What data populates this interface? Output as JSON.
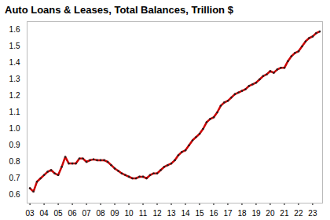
{
  "chart_data": {
    "type": "line",
    "title": "Auto Loans & Leases, Total Balances, Trillion $",
    "x": [
      2003,
      2003.25,
      2003.5,
      2003.75,
      2004,
      2004.25,
      2004.5,
      2004.75,
      2005,
      2005.25,
      2005.5,
      2005.75,
      2006,
      2006.25,
      2006.5,
      2006.75,
      2007,
      2007.25,
      2007.5,
      2007.75,
      2008,
      2008.25,
      2008.5,
      2008.75,
      2009,
      2009.25,
      2009.5,
      2009.75,
      2010,
      2010.25,
      2010.5,
      2010.75,
      2011,
      2011.25,
      2011.5,
      2011.75,
      2012,
      2012.25,
      2012.5,
      2012.75,
      2013,
      2013.25,
      2013.5,
      2013.75,
      2014,
      2014.25,
      2014.5,
      2014.75,
      2015,
      2015.25,
      2015.5,
      2015.75,
      2016,
      2016.25,
      2016.5,
      2016.75,
      2017,
      2017.25,
      2017.5,
      2017.75,
      2018,
      2018.25,
      2018.5,
      2018.75,
      2019,
      2019.25,
      2019.5,
      2019.75,
      2020,
      2020.25,
      2020.5,
      2020.75,
      2021,
      2021.25,
      2021.5,
      2021.75,
      2022,
      2022.25,
      2022.5,
      2022.75,
      2023,
      2023.25,
      2023.5
    ],
    "series": [
      {
        "name": "Auto Loans & Leases",
        "color": "#cc0000",
        "marker": "circle",
        "values": [
          0.64,
          0.62,
          0.68,
          0.7,
          0.72,
          0.74,
          0.75,
          0.73,
          0.72,
          0.77,
          0.83,
          0.79,
          0.79,
          0.79,
          0.82,
          0.82,
          0.8,
          0.81,
          0.815,
          0.81,
          0.81,
          0.81,
          0.8,
          0.78,
          0.76,
          0.745,
          0.73,
          0.72,
          0.71,
          0.7,
          0.7,
          0.71,
          0.71,
          0.7,
          0.72,
          0.73,
          0.73,
          0.75,
          0.77,
          0.78,
          0.79,
          0.81,
          0.84,
          0.86,
          0.87,
          0.9,
          0.93,
          0.95,
          0.97,
          1.0,
          1.04,
          1.06,
          1.07,
          1.1,
          1.14,
          1.16,
          1.17,
          1.19,
          1.21,
          1.22,
          1.23,
          1.24,
          1.26,
          1.27,
          1.28,
          1.3,
          1.32,
          1.33,
          1.35,
          1.34,
          1.36,
          1.37,
          1.37,
          1.41,
          1.44,
          1.46,
          1.47,
          1.5,
          1.53,
          1.55,
          1.56,
          1.58,
          1.59
        ]
      }
    ],
    "xlim": [
      2002.8,
      2023.7
    ],
    "xticks": [
      {
        "value": 2003,
        "label": "03"
      },
      {
        "value": 2004,
        "label": "04"
      },
      {
        "value": 2005,
        "label": "05"
      },
      {
        "value": 2006,
        "label": "06"
      },
      {
        "value": 2007,
        "label": "07"
      },
      {
        "value": 2008,
        "label": "08"
      },
      {
        "value": 2009,
        "label": "09"
      },
      {
        "value": 2010,
        "label": "10"
      },
      {
        "value": 2011,
        "label": "11"
      },
      {
        "value": 2012,
        "label": "12"
      },
      {
        "value": 2013,
        "label": "13"
      },
      {
        "value": 2014,
        "label": "14"
      },
      {
        "value": 2015,
        "label": "15"
      },
      {
        "value": 2016,
        "label": "16"
      },
      {
        "value": 2017,
        "label": "17"
      },
      {
        "value": 2018,
        "label": "18"
      },
      {
        "value": 2019,
        "label": "19"
      },
      {
        "value": 2020,
        "label": "20"
      },
      {
        "value": 2021,
        "label": "21"
      },
      {
        "value": 2022,
        "label": "22"
      },
      {
        "value": 2023,
        "label": "23"
      }
    ],
    "ylim": [
      0.55,
      1.65
    ],
    "yticks": [
      0.6,
      0.7,
      0.8,
      0.9,
      {
        "value": 1,
        "label": "1.0"
      },
      1.1,
      1.2,
      1.3,
      1.4,
      1.5,
      1.6
    ],
    "grid": false
  }
}
